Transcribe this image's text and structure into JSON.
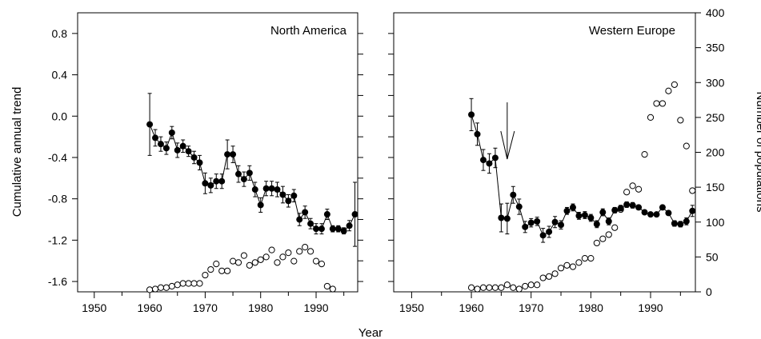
{
  "chart_data": [
    {
      "type": "scatter",
      "panel": "North America",
      "title": "North America",
      "xlabel": "Year",
      "ylabel": "Cumulative annual trend",
      "y2label": "Number of populations",
      "xlim": [
        1947,
        1997.5
      ],
      "xticks": [
        1950,
        1960,
        1970,
        1980,
        1990
      ],
      "ylim": [
        -1.7,
        1.0
      ],
      "yticks": [
        "0.8",
        "0.4",
        "0.0",
        "-0.4",
        "-0.8",
        "-1.2",
        "-1.6"
      ],
      "y2lim": [
        0,
        400
      ],
      "series": [
        {
          "kind": "trend",
          "x": [
            1960,
            1961,
            1962,
            1963,
            1964,
            1965,
            1966,
            1967,
            1968,
            1969,
            1970,
            1971,
            1972,
            1973,
            1974,
            1975,
            1976,
            1977,
            1978,
            1979,
            1980,
            1981,
            1982,
            1983,
            1984,
            1985,
            1986,
            1987,
            1988,
            1989,
            1990,
            1991,
            1992,
            1993,
            1994,
            1995,
            1996,
            1997
          ],
          "y": [
            -0.08,
            -0.21,
            -0.27,
            -0.31,
            -0.16,
            -0.33,
            -0.29,
            -0.34,
            -0.4,
            -0.45,
            -0.65,
            -0.67,
            -0.63,
            -0.63,
            -0.37,
            -0.37,
            -0.56,
            -0.61,
            -0.55,
            -0.71,
            -0.86,
            -0.7,
            -0.7,
            -0.71,
            -0.76,
            -0.82,
            -0.77,
            -1.0,
            -0.93,
            -1.04,
            -1.09,
            -1.09,
            -0.95,
            -1.09,
            -1.09,
            -1.11,
            -1.06,
            -0.95
          ],
          "err": [
            0.3,
            0.08,
            0.07,
            0.06,
            0.06,
            0.07,
            0.06,
            0.05,
            0.06,
            0.07,
            0.1,
            0.07,
            0.07,
            0.07,
            0.14,
            0.08,
            0.08,
            0.07,
            0.07,
            0.07,
            0.07,
            0.07,
            0.07,
            0.07,
            0.08,
            0.06,
            0.06,
            0.06,
            0.06,
            0.05,
            0.05,
            0.05,
            0.05,
            0.03,
            0.03,
            0.03,
            0.05,
            0.31
          ]
        },
        {
          "kind": "populations",
          "x": [
            1960,
            1961,
            1962,
            1963,
            1964,
            1965,
            1966,
            1967,
            1968,
            1969,
            1970,
            1971,
            1972,
            1973,
            1974,
            1975,
            1976,
            1977,
            1978,
            1979,
            1980,
            1981,
            1982,
            1983,
            1984,
            1985,
            1986,
            1987,
            1988,
            1989,
            1990,
            1991,
            1992,
            1993
          ],
          "y": [
            3,
            4,
            6,
            6,
            8,
            10,
            12,
            12,
            12,
            12,
            24,
            32,
            40,
            30,
            30,
            44,
            42,
            52,
            38,
            42,
            46,
            50,
            60,
            42,
            50,
            56,
            44,
            58,
            64,
            58,
            44,
            40,
            8,
            4
          ]
        }
      ]
    },
    {
      "type": "scatter",
      "panel": "Western Europe",
      "title": "Western Europe",
      "xlabel": "Year",
      "ylabel": "Cumulative annual trend",
      "y2label": "Number of populations",
      "xlim": [
        1947,
        1997.5
      ],
      "xticks": [
        1950,
        1960,
        1970,
        1980,
        1990
      ],
      "ylim": [
        -1.7,
        1.0
      ],
      "y2lim": [
        0,
        400
      ],
      "y2ticks": [
        0,
        50,
        100,
        150,
        200,
        250,
        300,
        350,
        400
      ],
      "annotation": {
        "type": "arrow",
        "x": 1966
      },
      "series": [
        {
          "kind": "trend",
          "x": [
            1960,
            1961,
            1962,
            1963,
            1964,
            1965,
            1966,
            1967,
            1968,
            1969,
            1970,
            1971,
            1972,
            1973,
            1974,
            1975,
            1976,
            1977,
            1978,
            1979,
            1980,
            1981,
            1982,
            1983,
            1984,
            1985,
            1986,
            1987,
            1988,
            1989,
            1990,
            1991,
            1992,
            1993,
            1994,
            1995,
            1996,
            1997
          ],
          "y": [
            254,
            226,
            189,
            184,
            192,
            106,
            105,
            139,
            122,
            93,
            99,
            101,
            81,
            86,
            100,
            96,
            116,
            121,
            109,
            110,
            106,
            97,
            114,
            101,
            117,
            120,
            125,
            124,
            121,
            114,
            111,
            111,
            121,
            113,
            98,
            97,
            101,
            116
          ],
          "err": [
            23,
            16,
            15,
            14,
            14,
            20,
            22,
            12,
            11,
            8,
            6,
            6,
            10,
            8,
            8,
            6,
            5,
            5,
            5,
            5,
            5,
            5,
            5,
            5,
            4,
            4,
            4,
            4,
            3,
            3,
            3,
            3,
            3,
            3,
            4,
            4,
            5,
            8
          ]
        },
        {
          "kind": "populations",
          "x": [
            1960,
            1961,
            1962,
            1963,
            1964,
            1965,
            1966,
            1967,
            1968,
            1969,
            1970,
            1971,
            1972,
            1973,
            1974,
            1975,
            1976,
            1977,
            1978,
            1979,
            1980,
            1981,
            1982,
            1983,
            1984,
            1985,
            1986,
            1987,
            1988,
            1989,
            1990,
            1991,
            1992,
            1993,
            1994,
            1995,
            1996,
            1997
          ],
          "y": [
            6,
            4,
            6,
            6,
            6,
            6,
            10,
            6,
            4,
            8,
            10,
            10,
            20,
            22,
            26,
            34,
            38,
            36,
            42,
            48,
            48,
            70,
            76,
            82,
            92,
            118,
            143,
            152,
            147,
            197,
            250,
            270,
            270,
            288,
            297,
            246,
            209,
            145
          ]
        }
      ]
    }
  ]
}
